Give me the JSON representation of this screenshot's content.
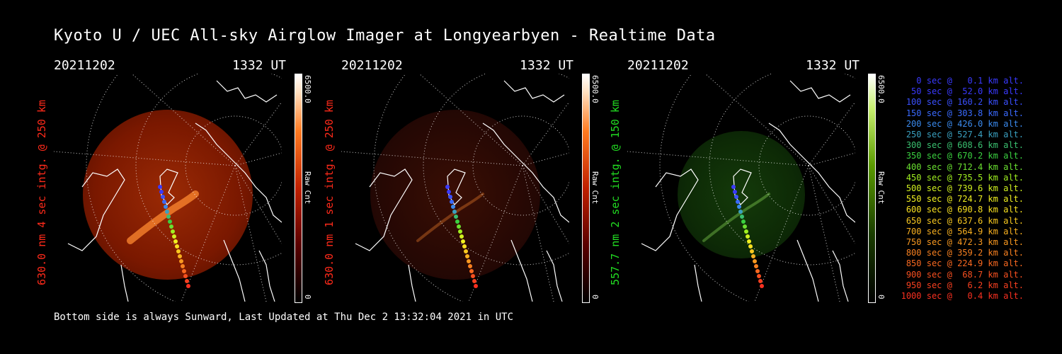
{
  "title": "Kyoto U / UEC All-sky Airglow Imager at Longyearbyen - Realtime Data",
  "footer": "Bottom side is always Sunward, Last Updated at Thu Dec  2 13:32:04 2021 in UTC",
  "panels": [
    {
      "date": "20211202",
      "time": "1332 UT",
      "ylabel": "630.0 nm 4 sec intg. @ 250 km",
      "ylabel_color": "#ff2a1a",
      "cbar_max": "6500.0",
      "cbar_unit": "Raw Cnt",
      "cbar_min": "0",
      "scheme": "red",
      "brightness": "strong"
    },
    {
      "date": "20211202",
      "time": "1332 UT",
      "ylabel": "630.0 nm 1 sec intg. @ 250 km",
      "ylabel_color": "#ff2a1a",
      "cbar_max": "6500.0",
      "cbar_unit": "Raw Cnt",
      "cbar_min": "0",
      "scheme": "red",
      "brightness": "faint"
    },
    {
      "date": "20211202",
      "time": "1332 UT",
      "ylabel": "557.7 nm 2 sec intg. @ 150 km",
      "ylabel_color": "#22dd22",
      "cbar_max": "6500.0",
      "cbar_unit": "Raw Cnt",
      "cbar_min": "0",
      "scheme": "green",
      "brightness": "faint"
    }
  ],
  "legend": [
    {
      "text": "0 sec @   0.1 km alt.",
      "color": "#3a3aff"
    },
    {
      "text": "50 sec @  52.0 km alt.",
      "color": "#3a3aff"
    },
    {
      "text": "100 sec @ 160.2 km alt.",
      "color": "#3a50ff"
    },
    {
      "text": "150 sec @ 303.8 km alt.",
      "color": "#3a6aff"
    },
    {
      "text": "200 sec @ 426.0 km alt.",
      "color": "#3a8aee"
    },
    {
      "text": "250 sec @ 527.4 km alt.",
      "color": "#3aa0c0"
    },
    {
      "text": "300 sec @ 608.6 km alt.",
      "color": "#3ac070"
    },
    {
      "text": "350 sec @ 670.2 km alt.",
      "color": "#3ad040"
    },
    {
      "text": "400 sec @ 712.4 km alt.",
      "color": "#6ae030"
    },
    {
      "text": "450 sec @ 735.5 km alt.",
      "color": "#a0f020"
    },
    {
      "text": "500 sec @ 739.6 km alt.",
      "color": "#d0f020"
    },
    {
      "text": "550 sec @ 724.7 km alt.",
      "color": "#f0f020"
    },
    {
      "text": "600 sec @ 690.8 km alt.",
      "color": "#f8e020"
    },
    {
      "text": "650 sec @ 637.6 km alt.",
      "color": "#f8c820"
    },
    {
      "text": "700 sec @ 564.9 km alt.",
      "color": "#f8b020"
    },
    {
      "text": "750 sec @ 472.3 km alt.",
      "color": "#f89820"
    },
    {
      "text": "800 sec @ 359.2 km alt.",
      "color": "#f88020"
    },
    {
      "text": "850 sec @ 224.9 km alt.",
      "color": "#f86820"
    },
    {
      "text": "900 sec @  68.7 km alt.",
      "color": "#f85020"
    },
    {
      "text": "950 sec @   6.2 km alt.",
      "color": "#f84020"
    },
    {
      "text": "1000 sec @   0.4 km alt.",
      "color": "#f83020"
    }
  ]
}
